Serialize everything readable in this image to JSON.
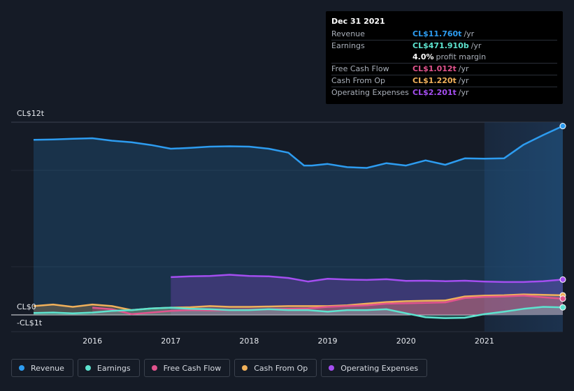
{
  "tooltip": {
    "date": "Dec 31 2021",
    "rows": [
      {
        "label": "Revenue",
        "value": "CL$11.760t",
        "unit": "/yr",
        "color": "#2d9cf0"
      },
      {
        "label": "Earnings",
        "value": "CL$471.910b",
        "unit": "/yr",
        "color": "#5de3cf"
      },
      {
        "margin_value": "4.0%",
        "margin_text": "profit margin"
      },
      {
        "label": "Free Cash Flow",
        "value": "CL$1.012t",
        "unit": "/yr",
        "color": "#e0538d"
      },
      {
        "label": "Cash From Op",
        "value": "CL$1.220t",
        "unit": "/yr",
        "color": "#f0b05a"
      },
      {
        "label": "Operating Expenses",
        "value": "CL$2.201t",
        "unit": "/yr",
        "color": "#a44ef0"
      }
    ]
  },
  "legend": [
    {
      "label": "Revenue",
      "color": "#2d9cf0"
    },
    {
      "label": "Earnings",
      "color": "#5de3cf"
    },
    {
      "label": "Free Cash Flow",
      "color": "#e0538d"
    },
    {
      "label": "Cash From Op",
      "color": "#f0b05a"
    },
    {
      "label": "Operating Expenses",
      "color": "#a44ef0"
    }
  ],
  "chart_data": {
    "type": "area",
    "y_labels": [
      "CL$12t",
      "CL$0",
      "-CL$1t"
    ],
    "y_label_values": [
      12,
      0,
      -1
    ],
    "ylim": [
      -1,
      12
    ],
    "xlim": [
      2015.25,
      2022.0
    ],
    "x_ticks": [
      2016,
      2017,
      2018,
      2019,
      2020,
      2021
    ],
    "x_tick_labels": [
      "2016",
      "2017",
      "2018",
      "2019",
      "2020",
      "2021"
    ],
    "highlight_from": 2021.0,
    "series": [
      {
        "name": "Revenue",
        "color": "#2d9cf0",
        "fill": true,
        "points": [
          [
            2015.25,
            10.9
          ],
          [
            2015.5,
            10.92
          ],
          [
            2015.75,
            10.97
          ],
          [
            2016.0,
            11.0
          ],
          [
            2016.25,
            10.85
          ],
          [
            2016.5,
            10.75
          ],
          [
            2016.75,
            10.58
          ],
          [
            2017.0,
            10.35
          ],
          [
            2017.25,
            10.4
          ],
          [
            2017.5,
            10.48
          ],
          [
            2017.75,
            10.5
          ],
          [
            2018.0,
            10.48
          ],
          [
            2018.25,
            10.35
          ],
          [
            2018.5,
            10.1
          ],
          [
            2018.7,
            9.3
          ],
          [
            2018.8,
            9.3
          ],
          [
            2019.0,
            9.4
          ],
          [
            2019.25,
            9.2
          ],
          [
            2019.5,
            9.15
          ],
          [
            2019.75,
            9.45
          ],
          [
            2020.0,
            9.3
          ],
          [
            2020.25,
            9.62
          ],
          [
            2020.5,
            9.35
          ],
          [
            2020.75,
            9.75
          ],
          [
            2021.0,
            9.73
          ],
          [
            2021.25,
            9.75
          ],
          [
            2021.5,
            10.6
          ],
          [
            2021.75,
            11.2
          ],
          [
            2022.0,
            11.76
          ]
        ]
      },
      {
        "name": "Operating Expenses",
        "color": "#a44ef0",
        "fill": true,
        "points": [
          [
            2017.0,
            2.35
          ],
          [
            2017.25,
            2.4
          ],
          [
            2017.5,
            2.42
          ],
          [
            2017.75,
            2.5
          ],
          [
            2018.0,
            2.42
          ],
          [
            2018.25,
            2.4
          ],
          [
            2018.5,
            2.3
          ],
          [
            2018.75,
            2.08
          ],
          [
            2019.0,
            2.25
          ],
          [
            2019.25,
            2.2
          ],
          [
            2019.5,
            2.18
          ],
          [
            2019.75,
            2.22
          ],
          [
            2020.0,
            2.12
          ],
          [
            2020.25,
            2.13
          ],
          [
            2020.5,
            2.1
          ],
          [
            2020.75,
            2.13
          ],
          [
            2021.0,
            2.08
          ],
          [
            2021.25,
            2.05
          ],
          [
            2021.5,
            2.05
          ],
          [
            2021.75,
            2.1
          ],
          [
            2022.0,
            2.2
          ]
        ]
      },
      {
        "name": "Cash From Op",
        "color": "#f0b05a",
        "fill": true,
        "points": [
          [
            2015.25,
            0.55
          ],
          [
            2015.5,
            0.65
          ],
          [
            2015.75,
            0.5
          ],
          [
            2016.0,
            0.65
          ],
          [
            2016.25,
            0.55
          ],
          [
            2016.5,
            0.3
          ],
          [
            2016.75,
            0.4
          ],
          [
            2017.0,
            0.45
          ],
          [
            2017.25,
            0.48
          ],
          [
            2017.5,
            0.55
          ],
          [
            2017.75,
            0.5
          ],
          [
            2018.0,
            0.5
          ],
          [
            2018.25,
            0.52
          ],
          [
            2018.5,
            0.55
          ],
          [
            2018.75,
            0.55
          ],
          [
            2019.0,
            0.55
          ],
          [
            2019.25,
            0.6
          ],
          [
            2019.5,
            0.7
          ],
          [
            2019.75,
            0.8
          ],
          [
            2020.0,
            0.85
          ],
          [
            2020.25,
            0.88
          ],
          [
            2020.5,
            0.9
          ],
          [
            2020.75,
            1.15
          ],
          [
            2021.0,
            1.2
          ],
          [
            2021.25,
            1.22
          ],
          [
            2021.5,
            1.28
          ],
          [
            2021.75,
            1.25
          ],
          [
            2022.0,
            1.22
          ]
        ]
      },
      {
        "name": "Free Cash Flow",
        "color": "#e0538d",
        "fill": true,
        "points": [
          [
            2016.0,
            0.45
          ],
          [
            2016.25,
            0.35
          ],
          [
            2016.5,
            0.05
          ],
          [
            2016.75,
            0.15
          ],
          [
            2017.0,
            0.25
          ],
          [
            2017.25,
            0.3
          ],
          [
            2017.5,
            0.28
          ],
          [
            2017.75,
            0.3
          ],
          [
            2018.0,
            0.32
          ],
          [
            2018.25,
            0.35
          ],
          [
            2018.5,
            0.38
          ],
          [
            2018.75,
            0.4
          ],
          [
            2019.0,
            0.5
          ],
          [
            2019.25,
            0.55
          ],
          [
            2019.5,
            0.6
          ],
          [
            2019.75,
            0.7
          ],
          [
            2020.0,
            0.72
          ],
          [
            2020.25,
            0.75
          ],
          [
            2020.5,
            0.78
          ],
          [
            2020.75,
            1.05
          ],
          [
            2021.0,
            1.12
          ],
          [
            2021.25,
            1.15
          ],
          [
            2021.5,
            1.2
          ],
          [
            2021.75,
            1.1
          ],
          [
            2022.0,
            1.01
          ]
        ]
      },
      {
        "name": "Earnings",
        "color": "#5de3cf",
        "fill": true,
        "points": [
          [
            2015.25,
            0.12
          ],
          [
            2015.5,
            0.15
          ],
          [
            2015.75,
            0.1
          ],
          [
            2016.0,
            0.15
          ],
          [
            2016.25,
            0.25
          ],
          [
            2016.5,
            0.3
          ],
          [
            2016.75,
            0.4
          ],
          [
            2017.0,
            0.45
          ],
          [
            2017.25,
            0.38
          ],
          [
            2017.5,
            0.35
          ],
          [
            2017.75,
            0.3
          ],
          [
            2018.0,
            0.3
          ],
          [
            2018.25,
            0.35
          ],
          [
            2018.5,
            0.3
          ],
          [
            2018.75,
            0.3
          ],
          [
            2019.0,
            0.2
          ],
          [
            2019.25,
            0.3
          ],
          [
            2019.5,
            0.3
          ],
          [
            2019.75,
            0.35
          ],
          [
            2020.0,
            0.1
          ],
          [
            2020.25,
            -0.15
          ],
          [
            2020.5,
            -0.2
          ],
          [
            2020.75,
            -0.18
          ],
          [
            2021.0,
            0.05
          ],
          [
            2021.25,
            0.2
          ],
          [
            2021.5,
            0.38
          ],
          [
            2021.75,
            0.5
          ],
          [
            2022.0,
            0.47
          ]
        ]
      }
    ]
  }
}
